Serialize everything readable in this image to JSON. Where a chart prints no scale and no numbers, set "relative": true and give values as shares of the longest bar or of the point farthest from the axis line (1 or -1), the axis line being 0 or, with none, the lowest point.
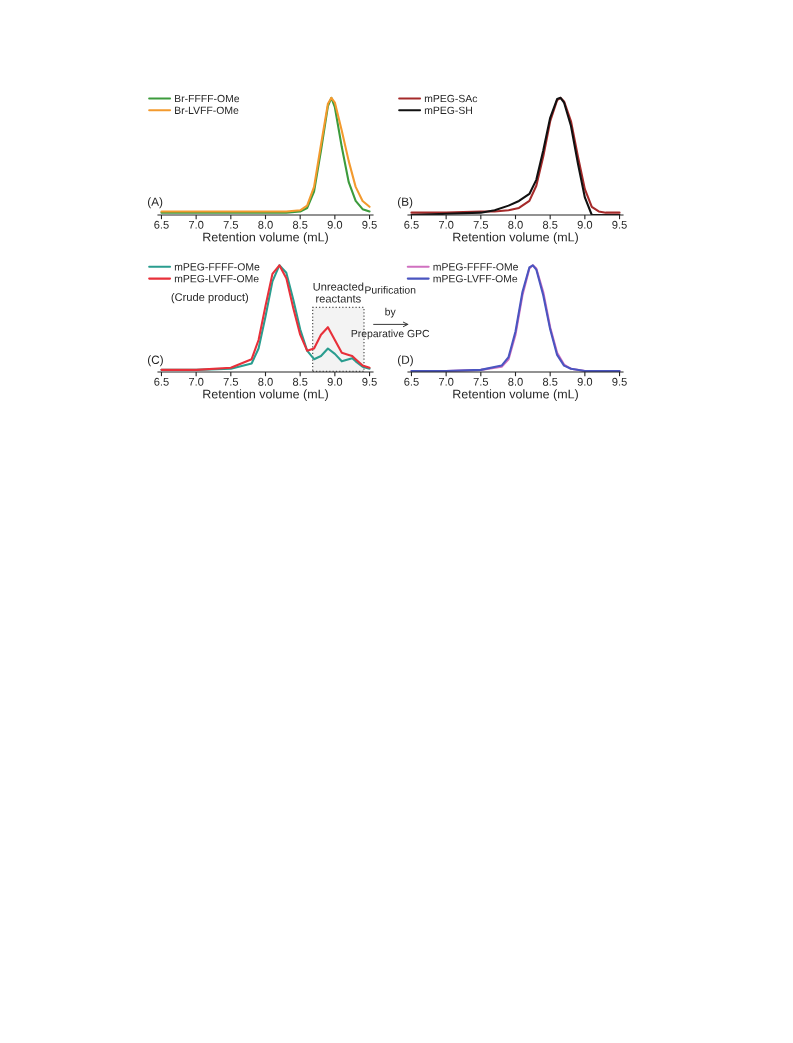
{
  "chart_data": [
    {
      "type": "line",
      "relative": true,
      "xlabel": "Retention volume (mL)",
      "xlim": [
        6.45,
        9.55
      ],
      "xticks": [
        6.5,
        {
          "value": 7,
          "label": "7.0"
        },
        7.5,
        {
          "value": 8,
          "label": "8.0"
        },
        8.5,
        {
          "value": 9,
          "label": "9.0"
        },
        9.5
      ],
      "tick_labels": "x",
      "legend": "top left",
      "grid": false,
      "annotations": [
        "(A)"
      ],
      "x": [
        6.5,
        7.0,
        7.5,
        8.0,
        8.3,
        8.5,
        8.6,
        8.7,
        8.8,
        8.9,
        8.95,
        9.0,
        9.1,
        9.2,
        9.3,
        9.4,
        9.5
      ],
      "series": [
        {
          "name": "Br-FFFF-OMe",
          "color": "#3c9b3c",
          "values": [
            0.02,
            0.02,
            0.02,
            0.02,
            0.02,
            0.03,
            0.06,
            0.2,
            0.55,
            0.93,
            1.0,
            0.92,
            0.58,
            0.28,
            0.12,
            0.05,
            0.03
          ]
        },
        {
          "name": "Br-LVFF-OMe",
          "color": "#f39a2e",
          "values": [
            0.03,
            0.03,
            0.03,
            0.03,
            0.03,
            0.04,
            0.08,
            0.24,
            0.6,
            0.95,
            1.0,
            0.96,
            0.72,
            0.46,
            0.24,
            0.12,
            0.07
          ]
        }
      ]
    },
    {
      "type": "line",
      "relative": true,
      "xlabel": "Retention volume (mL)",
      "xlim": [
        6.45,
        9.55
      ],
      "xticks": [
        6.5,
        {
          "value": 7,
          "label": "7.0"
        },
        7.5,
        {
          "value": 8,
          "label": "8.0"
        },
        8.5,
        {
          "value": 9,
          "label": "9.0"
        },
        9.5
      ],
      "tick_labels": "x",
      "legend": "top left",
      "grid": false,
      "annotations": [
        "(B)"
      ],
      "x": [
        6.5,
        7.0,
        7.5,
        7.7,
        7.9,
        8.05,
        8.2,
        8.3,
        8.4,
        8.5,
        8.6,
        8.65,
        8.7,
        8.8,
        8.9,
        9.0,
        9.1,
        9.2,
        9.3,
        9.5
      ],
      "series": [
        {
          "name": "mPEG-SAc",
          "color": "#a52a2a",
          "values": [
            0.02,
            0.02,
            0.03,
            0.03,
            0.04,
            0.06,
            0.12,
            0.25,
            0.5,
            0.8,
            0.98,
            1.0,
            0.97,
            0.8,
            0.5,
            0.22,
            0.07,
            0.03,
            0.02,
            0.02
          ]
        },
        {
          "name": "mPEG-SH",
          "color": "#111111",
          "values": [
            0.0,
            0.01,
            0.02,
            0.04,
            0.08,
            0.12,
            0.18,
            0.3,
            0.55,
            0.83,
            0.99,
            1.0,
            0.96,
            0.76,
            0.44,
            0.15,
            0.0,
            0.0,
            0.0,
            0.0
          ]
        }
      ]
    },
    {
      "type": "line",
      "relative": true,
      "xlabel": "Retention volume (mL)",
      "xlim": [
        6.45,
        9.55
      ],
      "xticks": [
        6.5,
        {
          "value": 7,
          "label": "7.0"
        },
        7.5,
        {
          "value": 8,
          "label": "8.0"
        },
        8.5,
        {
          "value": 9,
          "label": "9.0"
        },
        9.5
      ],
      "tick_labels": "x",
      "legend": "top left",
      "grid": false,
      "annotations": [
        "(C)",
        "(Crude product)",
        "Purification\nby\nPreparative GPC"
      ],
      "bands": [
        {
          "axis": "x",
          "from": 8.68,
          "to": 9.42,
          "label": "Unreacted\nreactants",
          "color": "#555555"
        }
      ],
      "x": [
        6.5,
        7.0,
        7.5,
        7.8,
        7.9,
        8.0,
        8.1,
        8.2,
        8.3,
        8.4,
        8.5,
        8.6,
        8.7,
        8.8,
        8.9,
        9.0,
        9.1,
        9.2,
        9.25,
        9.3,
        9.4,
        9.5
      ],
      "series": [
        {
          "name": "mPEG-FFFF-OMe",
          "color": "#2a9d8f",
          "values": [
            0.02,
            0.02,
            0.03,
            0.08,
            0.22,
            0.52,
            0.85,
            1.0,
            0.93,
            0.68,
            0.4,
            0.2,
            0.12,
            0.15,
            0.22,
            0.17,
            0.1,
            0.12,
            0.13,
            0.1,
            0.05,
            0.03
          ]
        },
        {
          "name": "mPEG-LVFF-OMe",
          "color": "#e8303a",
          "values": [
            0.02,
            0.02,
            0.04,
            0.12,
            0.3,
            0.62,
            0.92,
            1.0,
            0.88,
            0.6,
            0.35,
            0.2,
            0.22,
            0.35,
            0.42,
            0.3,
            0.18,
            0.16,
            0.15,
            0.12,
            0.06,
            0.04
          ]
        }
      ]
    },
    {
      "type": "line",
      "relative": true,
      "xlabel": "Retention volume (mL)",
      "xlim": [
        6.45,
        9.55
      ],
      "xticks": [
        6.5,
        {
          "value": 7,
          "label": "7.0"
        },
        7.5,
        {
          "value": 8,
          "label": "8.0"
        },
        8.5,
        {
          "value": 9,
          "label": "9.0"
        },
        9.5
      ],
      "tick_labels": "x",
      "legend": "top left",
      "grid": false,
      "annotations": [
        "(D)"
      ],
      "x": [
        6.5,
        7.0,
        7.5,
        7.8,
        7.9,
        8.0,
        8.1,
        8.2,
        8.25,
        8.3,
        8.4,
        8.5,
        8.6,
        8.7,
        8.8,
        9.0,
        9.5
      ],
      "series": [
        {
          "name": "mPEG-FFFF-OMe",
          "color": "#d070c0",
          "values": [
            0.01,
            0.01,
            0.02,
            0.05,
            0.12,
            0.35,
            0.72,
            0.97,
            1.0,
            0.97,
            0.75,
            0.42,
            0.18,
            0.07,
            0.03,
            0.01,
            0.01
          ]
        },
        {
          "name": "mPEG-LVFF-OMe",
          "color": "#4a55c0",
          "values": [
            0.01,
            0.01,
            0.02,
            0.06,
            0.14,
            0.38,
            0.75,
            0.98,
            1.0,
            0.96,
            0.72,
            0.4,
            0.16,
            0.06,
            0.03,
            0.01,
            0.01
          ]
        }
      ]
    }
  ]
}
